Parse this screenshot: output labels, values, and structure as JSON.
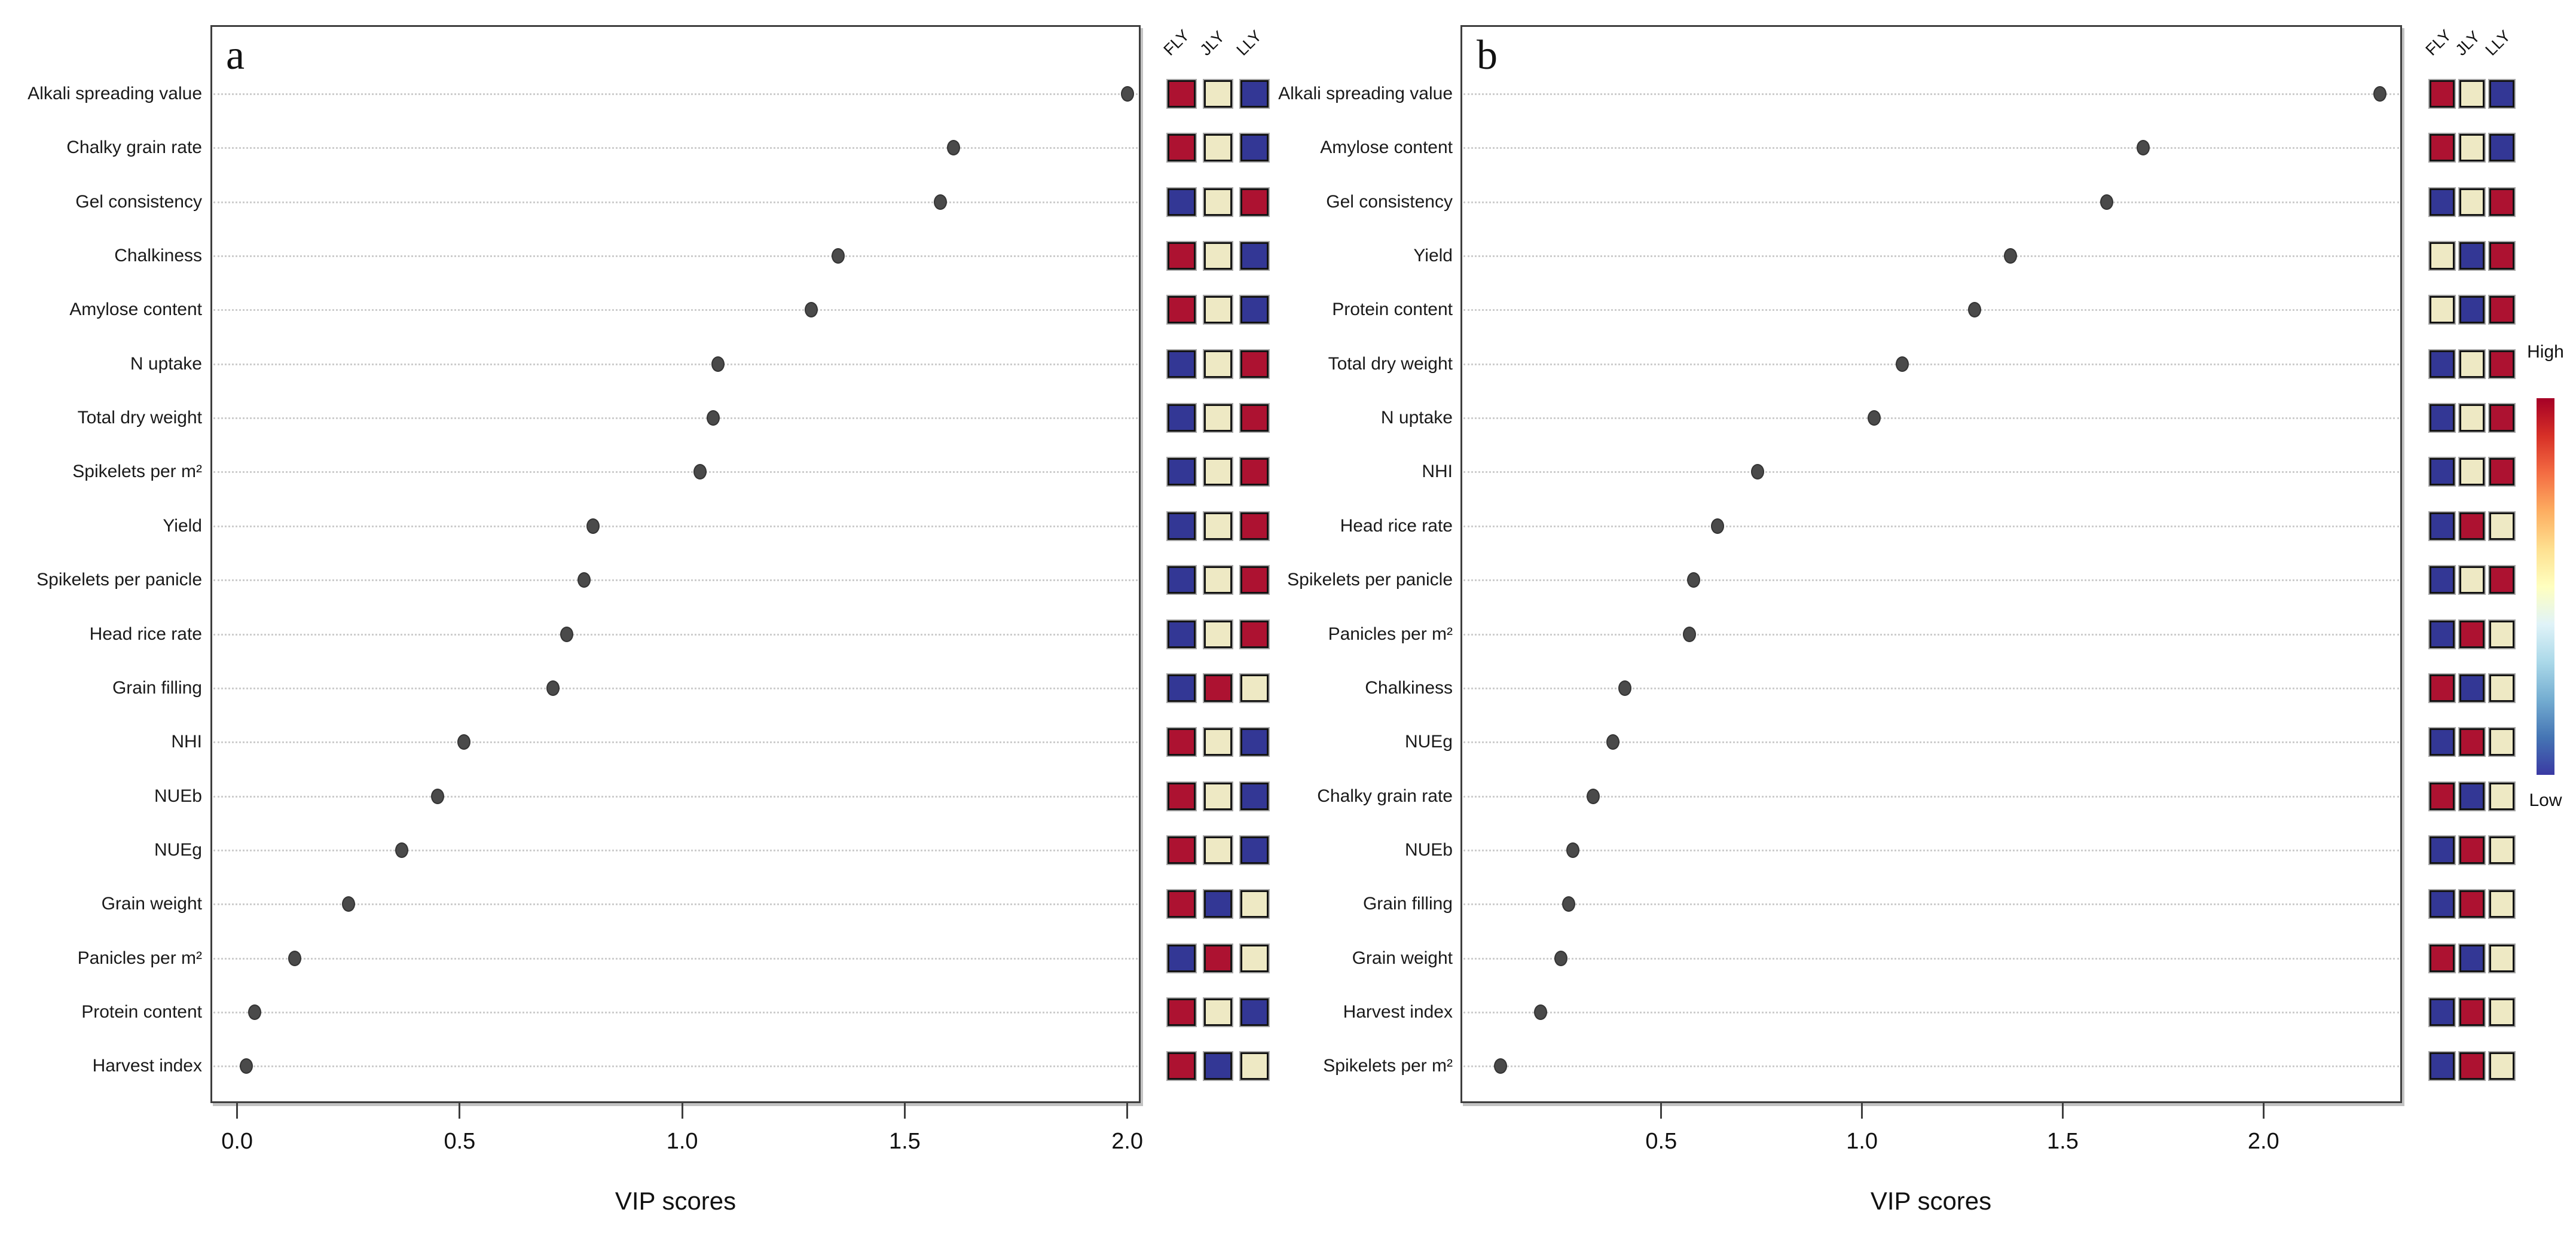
{
  "legend": {
    "high_label": "High",
    "low_label": "Low",
    "gradient": [
      "#a50026",
      "#d73027",
      "#f46d43",
      "#fdae61",
      "#fee090",
      "#ffffbf",
      "#e0f3f8",
      "#abd9e9",
      "#74add1",
      "#4575b4",
      "#3a3aa3"
    ]
  },
  "colors": {
    "heat_high": "#ad1231",
    "heat_mid": "#eee9c4",
    "heat_low": "#333795",
    "dot": "#4a4a4a",
    "grid": "#cdcdcd",
    "frame": "#3e3e3e"
  },
  "chart_data": [
    {
      "type": "scatter",
      "panel": "a",
      "panel_letter": "a",
      "xlabel": "VIP scores",
      "xlim": [
        -0.06,
        2.03
      ],
      "xticks": [
        0.0,
        0.5,
        1.0,
        1.5,
        2.0
      ],
      "xtick_labels": [
        "0.0",
        "0.5",
        "1.0",
        "1.5",
        "2.0"
      ],
      "grid": "dotted-horizontal",
      "legend_position": "none",
      "categories": [
        "Alkali spreading value",
        "Chalky grain rate",
        "Gel consistency",
        "Chalkiness",
        "Amylose content",
        "N uptake",
        "Total dry weight",
        "Spikelets per m²",
        "Yield",
        "Spikelets per panicle",
        "Head rice rate",
        "Grain filling",
        "NHI",
        "NUEb",
        "NUEg",
        "Grain weight",
        "Panicles per m²",
        "Protein content",
        "Harvest index"
      ],
      "values": [
        2.0,
        1.61,
        1.58,
        1.35,
        1.29,
        1.08,
        1.07,
        1.04,
        0.8,
        0.78,
        0.74,
        0.71,
        0.51,
        0.45,
        0.37,
        0.25,
        0.13,
        0.04,
        0.02
      ],
      "heatmap": {
        "columns": [
          "FLY",
          "JLY",
          "LLY"
        ],
        "levels": [
          [
            "high",
            "mid",
            "low"
          ],
          [
            "high",
            "mid",
            "low"
          ],
          [
            "low",
            "mid",
            "high"
          ],
          [
            "high",
            "mid",
            "low"
          ],
          [
            "high",
            "mid",
            "low"
          ],
          [
            "low",
            "mid",
            "high"
          ],
          [
            "low",
            "mid",
            "high"
          ],
          [
            "low",
            "mid",
            "high"
          ],
          [
            "low",
            "mid",
            "high"
          ],
          [
            "low",
            "mid",
            "high"
          ],
          [
            "low",
            "mid",
            "high"
          ],
          [
            "low",
            "high",
            "mid"
          ],
          [
            "high",
            "mid",
            "low"
          ],
          [
            "high",
            "mid",
            "low"
          ],
          [
            "high",
            "mid",
            "low"
          ],
          [
            "high",
            "low",
            "mid"
          ],
          [
            "low",
            "high",
            "mid"
          ],
          [
            "high",
            "mid",
            "low"
          ],
          [
            "high",
            "low",
            "mid"
          ]
        ]
      }
    },
    {
      "type": "scatter",
      "panel": "b",
      "panel_letter": "b",
      "xlabel": "VIP scores",
      "xlim": [
        0.0,
        2.345
      ],
      "xticks": [
        0.5,
        1.0,
        1.5,
        2.0
      ],
      "xtick_labels": [
        "0.5",
        "1.0",
        "1.5",
        "2.0"
      ],
      "grid": "dotted-horizontal",
      "legend_position": "right",
      "categories": [
        "Alkali spreading value",
        "Amylose content",
        "Gel consistency",
        "Yield",
        "Protein content",
        "Total dry weight",
        "N uptake",
        "NHI",
        "Head rice rate",
        "Spikelets per panicle",
        "Panicles per m²",
        "Chalkiness",
        "NUEg",
        "Chalky grain rate",
        "NUEb",
        "Grain filling",
        "Grain weight",
        "Harvest index",
        "Spikelets per m²"
      ],
      "values": [
        2.29,
        1.7,
        1.61,
        1.37,
        1.28,
        1.1,
        1.03,
        0.74,
        0.64,
        0.58,
        0.57,
        0.41,
        0.38,
        0.33,
        0.28,
        0.27,
        0.25,
        0.2,
        0.1
      ],
      "heatmap": {
        "columns": [
          "FLY",
          "JLY",
          "LLY"
        ],
        "levels": [
          [
            "high",
            "mid",
            "low"
          ],
          [
            "high",
            "mid",
            "low"
          ],
          [
            "low",
            "mid",
            "high"
          ],
          [
            "mid",
            "low",
            "high"
          ],
          [
            "mid",
            "low",
            "high"
          ],
          [
            "low",
            "mid",
            "high"
          ],
          [
            "low",
            "mid",
            "high"
          ],
          [
            "low",
            "mid",
            "high"
          ],
          [
            "low",
            "high",
            "mid"
          ],
          [
            "low",
            "mid",
            "high"
          ],
          [
            "low",
            "high",
            "mid"
          ],
          [
            "high",
            "low",
            "mid"
          ],
          [
            "low",
            "high",
            "mid"
          ],
          [
            "high",
            "low",
            "mid"
          ],
          [
            "low",
            "high",
            "mid"
          ],
          [
            "low",
            "high",
            "mid"
          ],
          [
            "high",
            "low",
            "mid"
          ],
          [
            "low",
            "high",
            "mid"
          ],
          [
            "low",
            "high",
            "mid"
          ]
        ]
      }
    }
  ]
}
